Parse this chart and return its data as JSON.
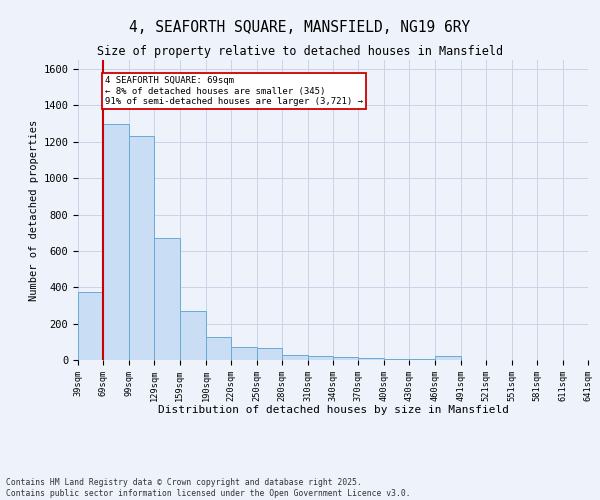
{
  "title": "4, SEAFORTH SQUARE, MANSFIELD, NG19 6RY",
  "subtitle": "Size of property relative to detached houses in Mansfield",
  "xlabel": "Distribution of detached houses by size in Mansfield",
  "ylabel": "Number of detached properties",
  "annotation_line1": "4 SEAFORTH SQUARE: 69sqm",
  "annotation_line2": "← 8% of detached houses are smaller (345)",
  "annotation_line3": "91% of semi-detached houses are larger (3,721) →",
  "property_size_sqm": 69,
  "bar_left_edges": [
    39,
    69,
    99,
    129,
    159,
    190,
    220,
    250,
    280,
    310,
    340,
    370,
    400,
    430,
    460,
    491,
    521,
    551,
    581,
    611
  ],
  "bar_widths": [
    30,
    30,
    30,
    30,
    31,
    30,
    30,
    30,
    30,
    30,
    30,
    30,
    30,
    30,
    31,
    30,
    30,
    30,
    30,
    30
  ],
  "bar_heights": [
    375,
    1300,
    1230,
    670,
    270,
    125,
    70,
    65,
    30,
    20,
    15,
    10,
    5,
    5,
    20,
    0,
    0,
    0,
    0,
    0
  ],
  "tick_labels": [
    "39sqm",
    "69sqm",
    "99sqm",
    "129sqm",
    "159sqm",
    "190sqm",
    "220sqm",
    "250sqm",
    "280sqm",
    "310sqm",
    "340sqm",
    "370sqm",
    "400sqm",
    "430sqm",
    "460sqm",
    "491sqm",
    "521sqm",
    "551sqm",
    "581sqm",
    "611sqm",
    "641sqm"
  ],
  "bar_color": "#c9ddf5",
  "bar_edge_color": "#6aaad4",
  "red_line_color": "#cc0000",
  "annotation_box_edge_color": "#cc0000",
  "annotation_bg": "white",
  "grid_color": "#c8d4e8",
  "background_color": "#eef2fa",
  "ylim": [
    0,
    1650
  ],
  "yticks": [
    0,
    200,
    400,
    600,
    800,
    1000,
    1200,
    1400,
    1600
  ],
  "footer_line1": "Contains HM Land Registry data © Crown copyright and database right 2025.",
  "footer_line2": "Contains public sector information licensed under the Open Government Licence v3.0."
}
